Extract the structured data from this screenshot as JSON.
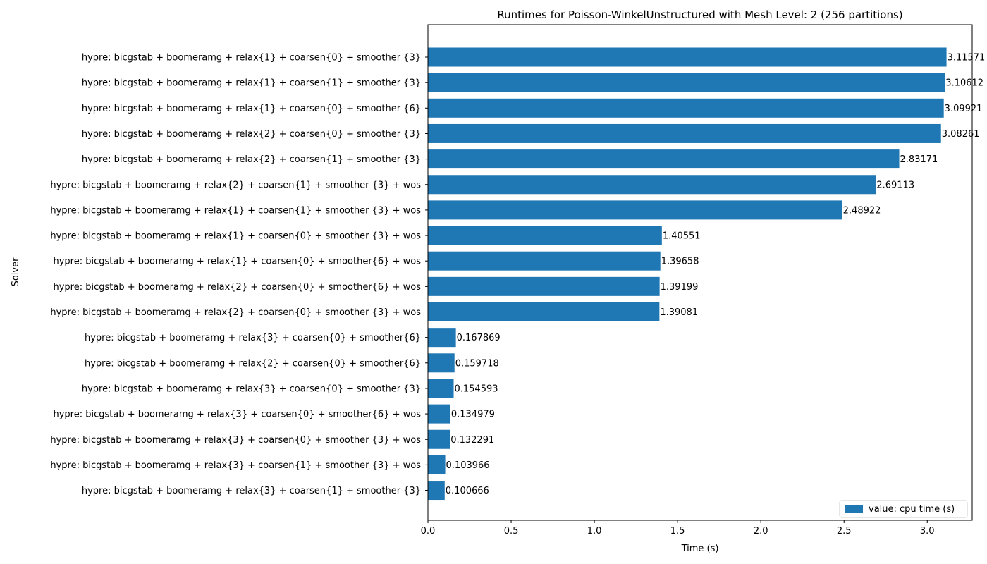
{
  "chart_data": {
    "type": "bar",
    "orientation": "horizontal",
    "title": "Runtimes for Poisson-WinkelUnstructured with Mesh Level: 2 (256 partitions)",
    "xlabel": "Time (s)",
    "ylabel": "Solver",
    "xlim": [
      0,
      3.27
    ],
    "xticks": [
      "0.0",
      "0.5",
      "1.0",
      "1.5",
      "2.0",
      "2.5",
      "3.0"
    ],
    "grid": false,
    "legend_position": "lower-right",
    "series": [
      {
        "name": "value: cpu time (s)",
        "color": "#1f77b4"
      }
    ],
    "categories": [
      "hypre: bicgstab + boomeramg + relax{1} + coarsen{0} + smoother {3}",
      "hypre: bicgstab + boomeramg + relax{1} + coarsen{1} + smoother {3}",
      "hypre: bicgstab + boomeramg + relax{1} + coarsen{0} + smoother {6}",
      "hypre: bicgstab + boomeramg + relax{2} + coarsen{0} + smoother {3}",
      "hypre: bicgstab + boomeramg + relax{2} + coarsen{1} + smoother {3}",
      "hypre: bicgstab + boomeramg + relax{2} + coarsen{1} + smoother {3} + wos",
      "hypre: bicgstab + boomeramg + relax{1} + coarsen{1} + smoother {3} + wos",
      "hypre: bicgstab + boomeramg + relax{1} + coarsen{0} + smoother {3} + wos",
      "hypre: bicgstab + boomeramg + relax{1} + coarsen{0} + smoother{6} + wos",
      "hypre: bicgstab + boomeramg + relax{2} + coarsen{0} + smoother{6} + wos",
      "hypre: bicgstab + boomeramg + relax{2} + coarsen{0} + smoother {3} + wos",
      "hypre: bicgstab + boomeramg + relax{3} + coarsen{0} + smoother{6}",
      "hypre: bicgstab + boomeramg + relax{2} + coarsen{0} + smoother{6}",
      "hypre: bicgstab + boomeramg + relax{3} + coarsen{0} + smoother {3}",
      "hypre: bicgstab + boomeramg + relax{3} + coarsen{0} + smoother{6} + wos",
      "hypre: bicgstab + boomeramg + relax{3} + coarsen{0} + smoother {3} + wos",
      "hypre: bicgstab + boomeramg + relax{3} + coarsen{1} + smoother {3} + wos",
      "hypre: bicgstab + boomeramg + relax{3} + coarsen{1} + smoother {3}"
    ],
    "values": [
      3.11571,
      3.10612,
      3.09921,
      3.08261,
      2.83171,
      2.69113,
      2.48922,
      1.40551,
      1.39658,
      1.39199,
      1.39081,
      0.167869,
      0.159718,
      0.154593,
      0.134979,
      0.132291,
      0.103966,
      0.100666
    ],
    "data_labels": [
      "3.11571",
      "3.10612",
      "3.09921",
      "3.08261",
      "2.83171",
      "2.69113",
      "2.48922",
      "1.40551",
      "1.39658",
      "1.39199",
      "1.39081",
      "0.167869",
      "0.159718",
      "0.154593",
      "0.134979",
      "0.132291",
      "0.103966",
      "0.100666"
    ]
  }
}
